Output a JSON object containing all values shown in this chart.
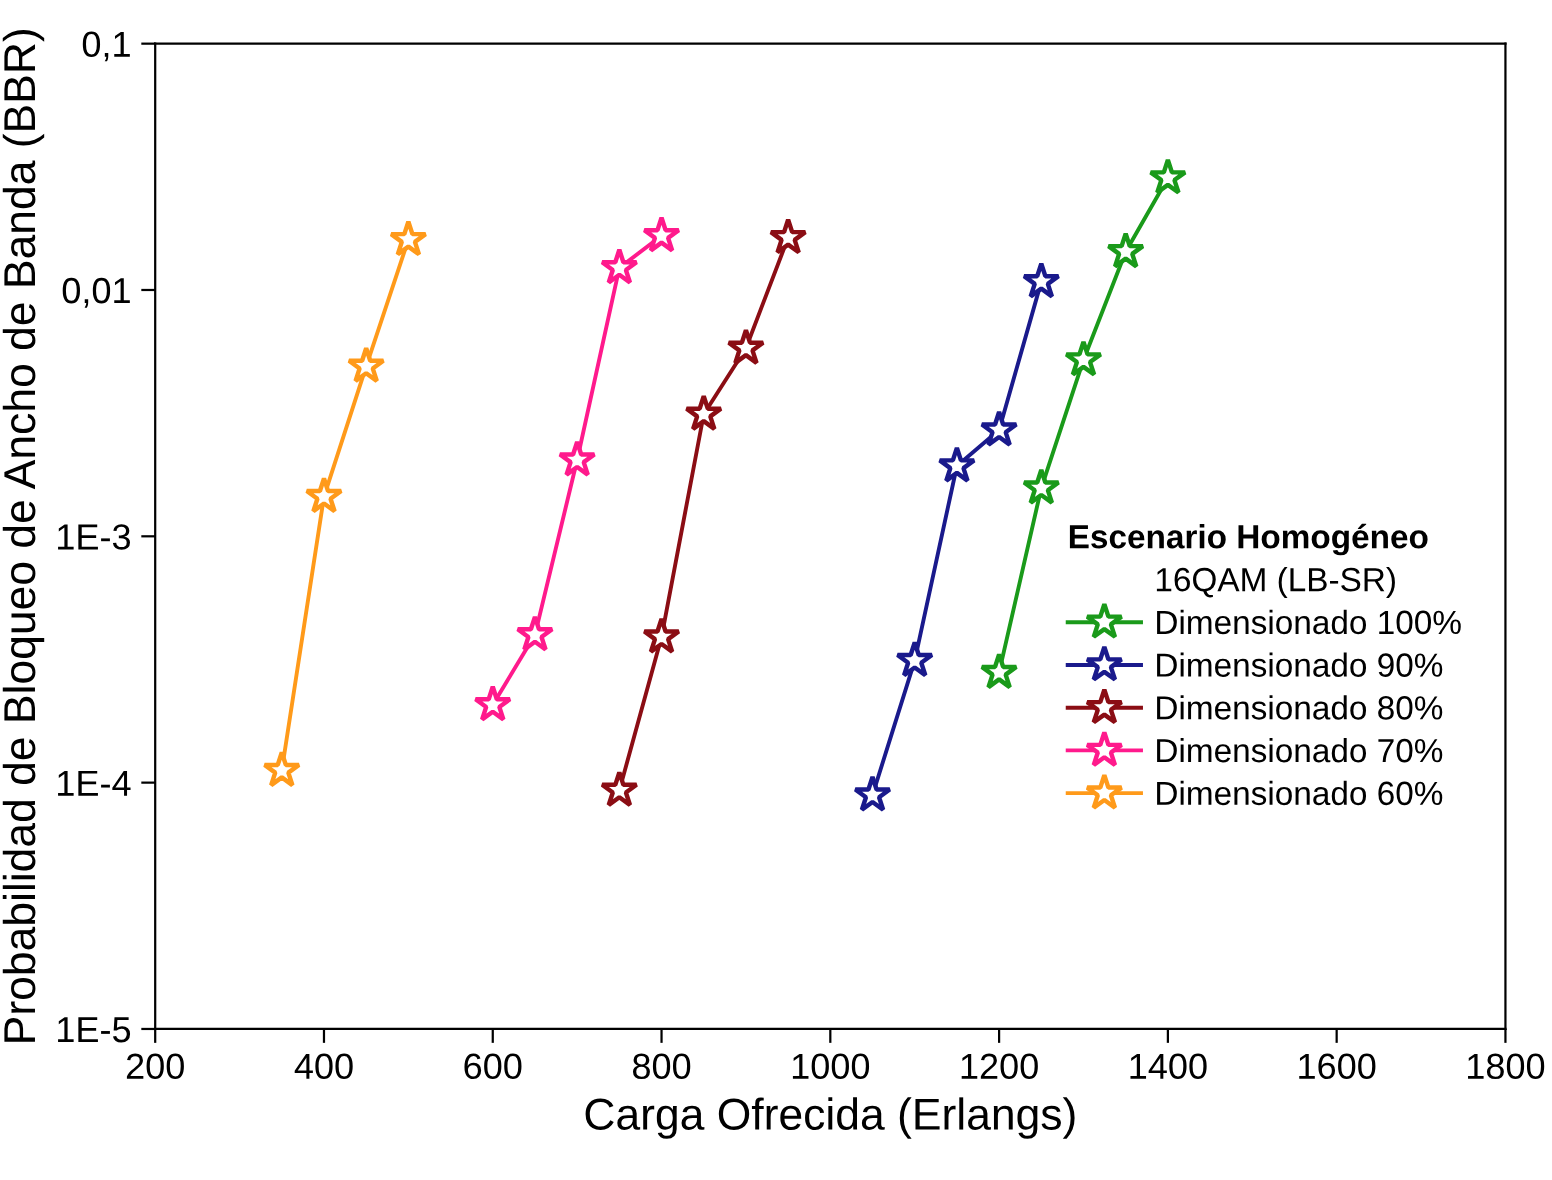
{
  "chart_data": {
    "type": "line",
    "xlabel": "Carga Ofrecida (Erlangs)",
    "ylabel": "Probabilidad de Bloqueo de Ancho de Banda (BBR)",
    "legend_title": "Escenario Homogéneo",
    "annotations": [
      "16QAM (LB-SR)"
    ],
    "log": "y",
    "xlim": [
      200,
      1800
    ],
    "xticks": [
      200,
      400,
      600,
      800,
      1000,
      1200,
      1400,
      1600,
      1800
    ],
    "ylim": [
      1e-05,
      0.1
    ],
    "yticks": [
      {
        "value": 1e-05,
        "label": "1E-5"
      },
      {
        "value": 0.0001,
        "label": "1E-4"
      },
      {
        "value": 0.001,
        "label": "1E-3"
      },
      {
        "value": 0.01,
        "label": "0,01"
      },
      {
        "value": 0.1,
        "label": "0,1"
      }
    ],
    "marker": "star",
    "line_style": "solid",
    "grid": false,
    "legend": "bottom right",
    "series": [
      {
        "name": "Dimensionado 100%",
        "color": "#1a9a1a",
        "x": [
          1200,
          1250,
          1300,
          1350,
          1400
        ],
        "values": [
          0.00028,
          0.00157,
          0.0052,
          0.0143,
          0.0285
        ]
      },
      {
        "name": "Dimensionado 90%",
        "color": "#1a1a8c",
        "x": [
          1050,
          1100,
          1150,
          1200,
          1250
        ],
        "values": [
          8.9e-05,
          0.000313,
          0.00193,
          0.0027,
          0.0108
        ]
      },
      {
        "name": "Dimensionado 80%",
        "color": "#8b0d14",
        "x": [
          750,
          800,
          850,
          900,
          950
        ],
        "values": [
          9.3e-05,
          0.00039,
          0.00313,
          0.0058,
          0.0163
        ]
      },
      {
        "name": "Dimensionado 70%",
        "color": "#ff1a8c",
        "x": [
          600,
          650,
          700,
          750,
          800
        ],
        "values": [
          0.000207,
          0.000398,
          0.00204,
          0.0123,
          0.0166
        ]
      },
      {
        "name": "Dimensionado 60%",
        "color": "#ff9a1a",
        "x": [
          350,
          400,
          450,
          500
        ],
        "values": [
          0.000112,
          0.00145,
          0.0049,
          0.016
        ]
      }
    ]
  }
}
